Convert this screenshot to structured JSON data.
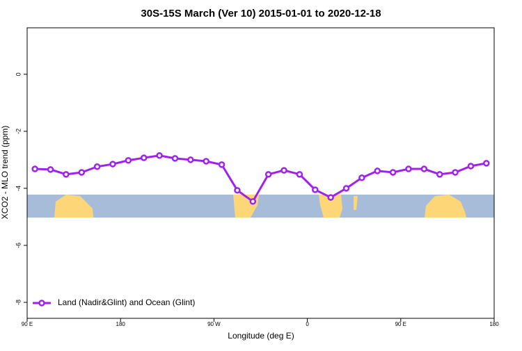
{
  "chart_data": {
    "type": "line",
    "title": "30S-15S March (Ver 10)   2015-01-01 to 2020-12-18",
    "x_label": "Longitude (deg E)",
    "y_label": "XCO2 - MLO trend (ppm)",
    "x": [
      97.5,
      112.5,
      127.5,
      142.5,
      157.5,
      172.5,
      187.5,
      202.5,
      217.5,
      232.5,
      247.5,
      262.5,
      277.5,
      292.5,
      307.5,
      322.5,
      337.5,
      352.5,
      367.5,
      382.5,
      397.5,
      412.5,
      427.5,
      442.5,
      457.5,
      472.5,
      487.5,
      502.5,
      517.5,
      532.5
    ],
    "series": [
      {
        "name": "Land (Nadir&Glint) and Ocean (Glint)",
        "color": "#a020f0",
        "values": [
          -3.32,
          -3.34,
          -3.51,
          -3.44,
          -3.24,
          -3.15,
          -3.02,
          -2.93,
          -2.85,
          -2.95,
          -3.0,
          -3.05,
          -3.17,
          -4.07,
          -4.46,
          -3.51,
          -3.37,
          -3.51,
          -4.05,
          -4.32,
          -4.0,
          -3.63,
          -3.39,
          -3.44,
          -3.32,
          -3.32,
          -3.51,
          -3.44,
          -3.22,
          -3.12
        ]
      }
    ],
    "xlim": [
      90,
      540
    ],
    "xticks": [
      {
        "value": 90,
        "label": "90 E"
      },
      {
        "value": 180,
        "label": "180"
      },
      {
        "value": 270,
        "label": "90 W"
      },
      {
        "value": 360,
        "label": "0"
      },
      {
        "value": 450,
        "label": "90 E"
      },
      {
        "value": 540,
        "label": "180"
      }
    ],
    "ylim": [
      -8.56,
      1.63
    ],
    "yticks": [
      -8,
      -6,
      -4,
      -2,
      0
    ],
    "legend": "bottom-left"
  }
}
